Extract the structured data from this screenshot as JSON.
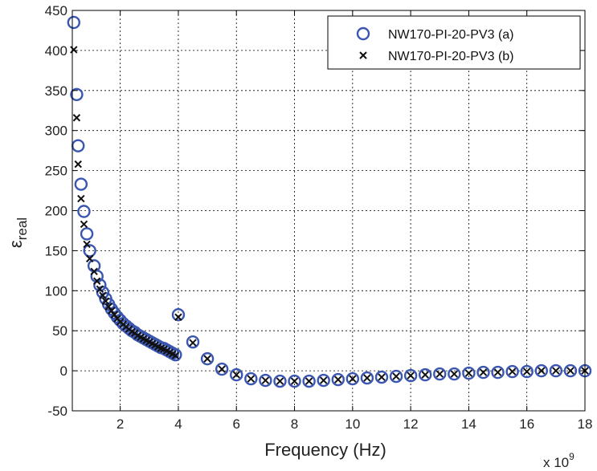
{
  "chart_data": {
    "type": "scatter",
    "title": "",
    "xlabel": "Frequency (Hz)",
    "ylabel": "ε",
    "ylabel_subscript": "real",
    "x_exponent_base": "x 10",
    "x_exponent_power": "9",
    "xlim": [
      0.35,
      18
    ],
    "ylim": [
      -50,
      450
    ],
    "grid": true,
    "legend_position": "top-right",
    "x_ticks": [
      2,
      4,
      6,
      8,
      10,
      12,
      14,
      16,
      18
    ],
    "y_ticks": [
      -50,
      0,
      50,
      100,
      150,
      200,
      250,
      300,
      350,
      400,
      450
    ],
    "series": [
      {
        "name": "NW170-PI-20-PV3 (a)",
        "marker": "circle",
        "color": "#3a56b0",
        "points": [
          [
            0.4,
            435
          ],
          [
            0.5,
            345
          ],
          [
            0.55,
            281
          ],
          [
            0.65,
            233
          ],
          [
            0.75,
            199
          ],
          [
            0.85,
            171
          ],
          [
            0.95,
            150
          ],
          [
            1.1,
            131
          ],
          [
            1.2,
            118
          ],
          [
            1.3,
            107
          ],
          [
            1.4,
            98
          ],
          [
            1.5,
            90
          ],
          [
            1.6,
            83
          ],
          [
            1.7,
            77
          ],
          [
            1.8,
            72
          ],
          [
            1.9,
            67
          ],
          [
            2.0,
            63
          ],
          [
            2.1,
            59
          ],
          [
            2.2,
            56
          ],
          [
            2.3,
            53
          ],
          [
            2.4,
            50
          ],
          [
            2.5,
            48
          ],
          [
            2.6,
            45
          ],
          [
            2.7,
            43
          ],
          [
            2.8,
            41
          ],
          [
            2.9,
            39
          ],
          [
            3.0,
            37
          ],
          [
            3.1,
            35
          ],
          [
            3.2,
            33
          ],
          [
            3.3,
            31
          ],
          [
            3.4,
            29
          ],
          [
            3.5,
            28
          ],
          [
            3.6,
            26
          ],
          [
            3.7,
            24
          ],
          [
            3.8,
            22
          ],
          [
            3.9,
            20
          ],
          [
            4.0,
            70
          ],
          [
            4.5,
            36
          ],
          [
            5.0,
            15
          ],
          [
            5.5,
            2
          ],
          [
            6.0,
            -5
          ],
          [
            6.5,
            -10
          ],
          [
            7.0,
            -12
          ],
          [
            7.5,
            -13
          ],
          [
            8.0,
            -13
          ],
          [
            8.5,
            -13
          ],
          [
            9.0,
            -12
          ],
          [
            9.5,
            -11
          ],
          [
            10.0,
            -10
          ],
          [
            10.5,
            -9
          ],
          [
            11.0,
            -8
          ],
          [
            11.5,
            -7
          ],
          [
            12.0,
            -6
          ],
          [
            12.5,
            -5
          ],
          [
            13.0,
            -4
          ],
          [
            13.5,
            -4
          ],
          [
            14.0,
            -3
          ],
          [
            14.5,
            -2
          ],
          [
            15.0,
            -2
          ],
          [
            15.5,
            -1
          ],
          [
            16.0,
            -1
          ],
          [
            16.5,
            0
          ],
          [
            17.0,
            0
          ],
          [
            17.5,
            0
          ],
          [
            18.0,
            0
          ]
        ]
      },
      {
        "name": "NW170-PI-20-PV3 (b)",
        "marker": "x",
        "color": "#111111",
        "points": [
          [
            0.4,
            401
          ],
          [
            0.5,
            316
          ],
          [
            0.55,
            258
          ],
          [
            0.65,
            215
          ],
          [
            0.75,
            183
          ],
          [
            0.85,
            158
          ],
          [
            0.95,
            140
          ],
          [
            1.1,
            124
          ],
          [
            1.2,
            112
          ],
          [
            1.3,
            102
          ],
          [
            1.4,
            94
          ],
          [
            1.5,
            87
          ],
          [
            1.6,
            80
          ],
          [
            1.7,
            75
          ],
          [
            1.8,
            70
          ],
          [
            1.9,
            65
          ],
          [
            2.0,
            61
          ],
          [
            2.1,
            58
          ],
          [
            2.2,
            55
          ],
          [
            2.3,
            52
          ],
          [
            2.4,
            49
          ],
          [
            2.5,
            47
          ],
          [
            2.6,
            44
          ],
          [
            2.7,
            42
          ],
          [
            2.8,
            40
          ],
          [
            2.9,
            38
          ],
          [
            3.0,
            36
          ],
          [
            3.1,
            34
          ],
          [
            3.2,
            32
          ],
          [
            3.3,
            30
          ],
          [
            3.4,
            28
          ],
          [
            3.5,
            27
          ],
          [
            3.6,
            25
          ],
          [
            3.7,
            23
          ],
          [
            3.8,
            21
          ],
          [
            3.9,
            19
          ],
          [
            4.0,
            67
          ],
          [
            4.5,
            35
          ],
          [
            5.0,
            15
          ],
          [
            5.5,
            2
          ],
          [
            6.0,
            -5
          ],
          [
            6.5,
            -10
          ],
          [
            7.0,
            -12
          ],
          [
            7.5,
            -13
          ],
          [
            8.0,
            -13
          ],
          [
            8.5,
            -13
          ],
          [
            9.0,
            -12
          ],
          [
            9.5,
            -11
          ],
          [
            10.0,
            -10
          ],
          [
            10.5,
            -9
          ],
          [
            11.0,
            -8
          ],
          [
            11.5,
            -7
          ],
          [
            12.0,
            -6
          ],
          [
            12.5,
            -5
          ],
          [
            13.0,
            -4
          ],
          [
            13.5,
            -4
          ],
          [
            14.0,
            -3
          ],
          [
            14.5,
            -2
          ],
          [
            15.0,
            -2
          ],
          [
            15.5,
            -1
          ],
          [
            16.0,
            -1
          ],
          [
            16.5,
            0
          ],
          [
            17.0,
            0
          ],
          [
            17.5,
            0
          ],
          [
            18.0,
            0
          ]
        ]
      }
    ]
  }
}
